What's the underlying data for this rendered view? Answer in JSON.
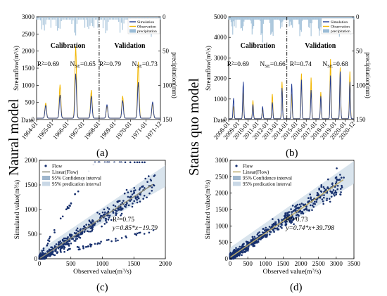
{
  "row_labels": {
    "top_left": "Naural model",
    "top_right": "Status quo model"
  },
  "panel_labels": {
    "a": "(a)",
    "b": "(b)",
    "c": "(c)",
    "d": "(d)"
  },
  "chart_data": [
    {
      "id": "a",
      "type": "line",
      "title": "",
      "xlabel": "Date",
      "ylabel": "Streamflow(m³/s)",
      "ylabel_right": "precipitation(mm)",
      "ylim": [
        0,
        3000
      ],
      "yticks": [
        "0",
        "500",
        "1000",
        "1500",
        "2000",
        "2500",
        "3000"
      ],
      "ylim_right": [
        150,
        0
      ],
      "yticks_right": [
        "0",
        "50",
        "100",
        "150"
      ],
      "x_ticks": [
        "1964-01",
        "1965-01",
        "1966-01",
        "1967-01",
        "1968-01",
        "1969-01",
        "1970-01",
        "1971-01",
        "1971-12"
      ],
      "legend": [
        "Simulation",
        "Observation",
        "precipitation"
      ],
      "legend_position": "top-right",
      "periods": [
        {
          "label": "Calibration",
          "r2": "R²=0.69",
          "nse_prefix": "N",
          "nse_sub": "SE",
          "nse_value": "=0.65"
        },
        {
          "label": "Validation",
          "r2": "R²=0.79",
          "nse_prefix": "N",
          "nse_sub": "SE",
          "nse_value": "=0.73"
        }
      ],
      "split_after_tick": "1968-01",
      "observation_peaks": [
        {
          "x": "1964-08",
          "value": 450
        },
        {
          "x": "1965-07",
          "value": 980
        },
        {
          "x": "1966-07",
          "value": 2100
        },
        {
          "x": "1967-07",
          "value": 820
        },
        {
          "x": "1968-07",
          "value": 350
        },
        {
          "x": "1969-07",
          "value": 650
        },
        {
          "x": "1970-07",
          "value": 1650
        },
        {
          "x": "1971-06",
          "value": 420
        }
      ],
      "simulation_peaks": [
        {
          "x": "1964-08",
          "value": 380
        },
        {
          "x": "1965-07",
          "value": 680
        },
        {
          "x": "1966-07",
          "value": 1300
        },
        {
          "x": "1967-07",
          "value": 650
        },
        {
          "x": "1968-07",
          "value": 400
        },
        {
          "x": "1969-07",
          "value": 520
        },
        {
          "x": "1970-07",
          "value": 1050
        },
        {
          "x": "1971-06",
          "value": 480
        }
      ],
      "colors": {
        "simulation": "#1f3a93",
        "observation": "#f2b705",
        "precipitation": "#9bbcd6"
      }
    },
    {
      "id": "b",
      "type": "line",
      "title": "",
      "xlabel": "Date",
      "ylabel": "Streamflow(m³/s)",
      "ylabel_right": "precipitation(mm)",
      "ylim": [
        0,
        5000
      ],
      "yticks": [
        "0",
        "1000",
        "2000",
        "3000",
        "4000",
        "5000"
      ],
      "ylim_right": [
        150,
        0
      ],
      "yticks_right": [
        "0",
        "50",
        "100",
        "150"
      ],
      "x_ticks": [
        "2008-01",
        "2009-01",
        "2010-01",
        "2011-01",
        "2012-01",
        "2013-01",
        "2014-01",
        "2015-01",
        "2016-01",
        "2017-01",
        "2018-01",
        "2019-01",
        "2020-01",
        "2020-12"
      ],
      "legend": [
        "Simulation",
        "Observation",
        "precipitation"
      ],
      "legend_position": "top-right",
      "periods": [
        {
          "label": "Calibration",
          "r2": "R²=0.69",
          "nse_prefix": "N",
          "nse_sub": "SE",
          "nse_value": "=0.66"
        },
        {
          "label": "Validation",
          "r2": "R²=0.74",
          "nse_prefix": "N",
          "nse_sub": "SE",
          "nse_value": "=0.68"
        }
      ],
      "split_after_tick": "2014-01",
      "observation_peaks": [
        {
          "x": "2008-07",
          "value": 600
        },
        {
          "x": "2009-07",
          "value": 1400
        },
        {
          "x": "2010-07",
          "value": 900
        },
        {
          "x": "2011-07",
          "value": 500
        },
        {
          "x": "2012-07",
          "value": 1200
        },
        {
          "x": "2013-07",
          "value": 1800
        },
        {
          "x": "2014-07",
          "value": 1200
        },
        {
          "x": "2015-07",
          "value": 2200
        },
        {
          "x": "2016-07",
          "value": 2000
        },
        {
          "x": "2017-07",
          "value": 1300
        },
        {
          "x": "2018-07",
          "value": 2900
        },
        {
          "x": "2019-07",
          "value": 2500
        },
        {
          "x": "2020-07",
          "value": 2300
        }
      ],
      "simulation_peaks": [
        {
          "x": "2008-07",
          "value": 1000
        },
        {
          "x": "2009-07",
          "value": 1800
        },
        {
          "x": "2010-07",
          "value": 700
        },
        {
          "x": "2011-07",
          "value": 600
        },
        {
          "x": "2012-07",
          "value": 800
        },
        {
          "x": "2013-07",
          "value": 1500
        },
        {
          "x": "2014-07",
          "value": 1700
        },
        {
          "x": "2015-07",
          "value": 1900
        },
        {
          "x": "2016-07",
          "value": 1400
        },
        {
          "x": "2017-07",
          "value": 1100
        },
        {
          "x": "2018-07",
          "value": 2100
        },
        {
          "x": "2019-07",
          "value": 2300
        },
        {
          "x": "2020-07",
          "value": 1800
        }
      ],
      "colors": {
        "simulation": "#1f3a93",
        "observation": "#f2b705",
        "precipitation": "#9bbcd6"
      }
    },
    {
      "id": "c",
      "type": "scatter",
      "title": "",
      "xlabel_prefix": "Observed value(m",
      "xlabel_suffix": "/s)",
      "ylabel": "Simulated value(m³/s)",
      "xlim": [
        0,
        2000
      ],
      "ylim": [
        0,
        2000
      ],
      "xticks": [
        "0",
        "500",
        "1000",
        "1500",
        "2000"
      ],
      "yticks": [
        "0",
        "500",
        "1000",
        "1500",
        "2000"
      ],
      "legend": [
        "Flow",
        "Linear(Flow)",
        "95% Confidence interval",
        "95% predication interval"
      ],
      "legend_position": "top-left",
      "r2": "R²=0.75",
      "equation": "y=0.85*x−19.79",
      "fit": {
        "slope": 0.85,
        "intercept": -19.79
      },
      "colors": {
        "points": "#17306e",
        "fit": "#8a8a7a",
        "band": "#c9d8e6"
      }
    },
    {
      "id": "d",
      "type": "scatter",
      "title": "",
      "xlabel_prefix": "Observed value(m",
      "xlabel_suffix": "/s)",
      "ylabel": "Simulated value(m³/s)",
      "xlim": [
        0,
        3500
      ],
      "ylim": [
        0,
        3000
      ],
      "xticks": [
        "0",
        "500",
        "1000",
        "1500",
        "2000",
        "2500",
        "3000",
        "3500"
      ],
      "yticks": [
        "0",
        "500",
        "1000",
        "1500",
        "2000",
        "2500",
        "3000"
      ],
      "legend": [
        "Flow",
        "Linear(Flow)",
        "95% Confidence interval",
        "95% predication interval"
      ],
      "legend_position": "top-left",
      "r2": "R²=0.73",
      "equation": "y=0.74*x+39.798",
      "fit": {
        "slope": 0.74,
        "intercept": 39.798
      },
      "colors": {
        "points": "#17306e",
        "fit": "#b8a86a",
        "band": "#c9d8e6"
      }
    }
  ]
}
